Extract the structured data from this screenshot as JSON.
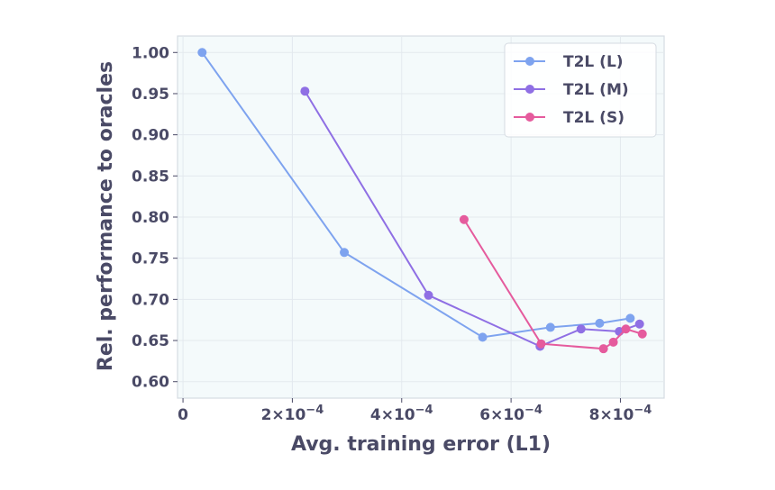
{
  "chart_data": {
    "type": "line",
    "title": "",
    "xlabel": "Avg. training error (L1)",
    "ylabel": "Rel. performance to oracles",
    "xlim": [
      -1e-05,
      0.00088
    ],
    "ylim": [
      0.58,
      1.02
    ],
    "x_ticks": [
      {
        "value": 0,
        "base": "0",
        "exp": ""
      },
      {
        "value": 0.0002,
        "base": "2×10",
        "exp": "−4"
      },
      {
        "value": 0.0004,
        "base": "4×10",
        "exp": "−4"
      },
      {
        "value": 0.0006,
        "base": "6×10",
        "exp": "−4"
      },
      {
        "value": 0.0008,
        "base": "8×10",
        "exp": "−4"
      }
    ],
    "y_ticks": [
      "0.60",
      "0.65",
      "0.70",
      "0.75",
      "0.80",
      "0.85",
      "0.90",
      "0.95",
      "1.00"
    ],
    "grid": true,
    "legend_position": "top-right",
    "series": [
      {
        "name": "T2L (L)",
        "color": "#7ea3ef",
        "points": [
          [
            3.5e-05,
            1.0
          ],
          [
            0.000295,
            0.757
          ],
          [
            0.000548,
            0.654
          ],
          [
            0.000672,
            0.666
          ],
          [
            0.000762,
            0.671
          ],
          [
            0.000818,
            0.677
          ]
        ]
      },
      {
        "name": "T2L (M)",
        "color": "#8f6fe4",
        "points": [
          [
            0.000223,
            0.953
          ],
          [
            0.000449,
            0.705
          ],
          [
            0.000653,
            0.643
          ],
          [
            0.000728,
            0.664
          ],
          [
            0.000798,
            0.661
          ],
          [
            0.000835,
            0.67
          ]
        ]
      },
      {
        "name": "T2L (S)",
        "color": "#e55b9d",
        "points": [
          [
            0.000514,
            0.797
          ],
          [
            0.000655,
            0.646
          ],
          [
            0.000769,
            0.64
          ],
          [
            0.000787,
            0.648
          ],
          [
            0.00081,
            0.664
          ],
          [
            0.00084,
            0.658
          ]
        ]
      }
    ]
  }
}
